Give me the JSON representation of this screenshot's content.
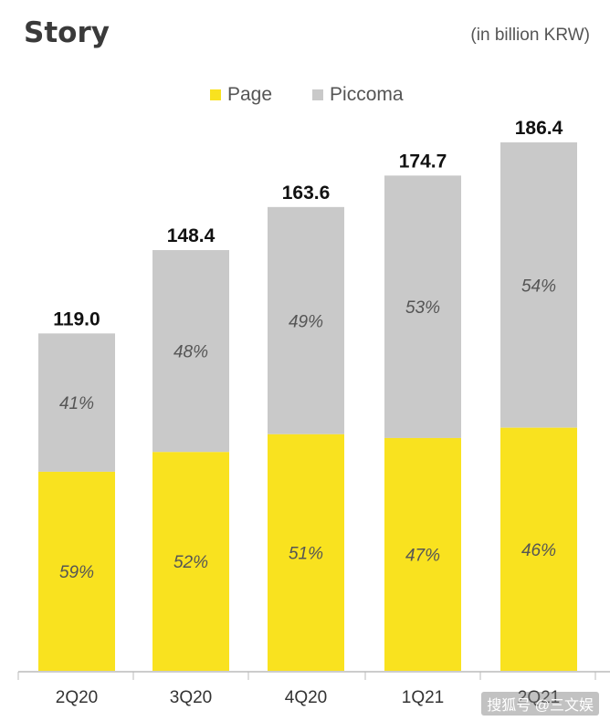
{
  "title": "Story",
  "units": "(in billion KRW)",
  "watermark": "搜狐号 @三文娱",
  "colors": {
    "page": "#f9e21f",
    "piccoma": "#c9c9c9",
    "axis": "#bbbbbb"
  },
  "chart_data": {
    "type": "bar",
    "stacked": true,
    "categories": [
      "2Q20",
      "3Q20",
      "4Q20",
      "1Q21",
      "2Q21"
    ],
    "totals": [
      119.0,
      148.4,
      163.6,
      174.7,
      186.4
    ],
    "total_labels": [
      "119.0",
      "148.4",
      "163.6",
      "174.7",
      "186.4"
    ],
    "series": [
      {
        "name": "Page",
        "color": "#f9e21f",
        "share_labels": [
          "59%",
          "52%",
          "51%",
          "47%",
          "46%"
        ],
        "shares": [
          0.59,
          0.52,
          0.51,
          0.47,
          0.46
        ]
      },
      {
        "name": "Piccoma",
        "color": "#c9c9c9",
        "share_labels": [
          "41%",
          "48%",
          "49%",
          "53%",
          "54%"
        ],
        "shares": [
          0.41,
          0.48,
          0.49,
          0.53,
          0.54
        ]
      }
    ],
    "legend_position": "top-center",
    "grid": false
  }
}
